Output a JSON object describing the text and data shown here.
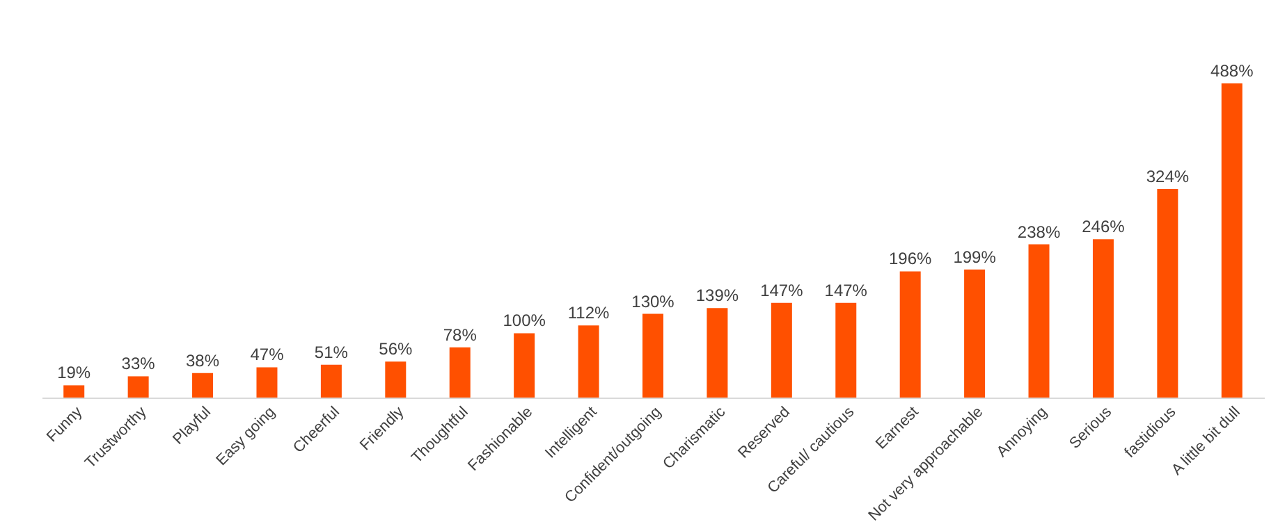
{
  "chart_data": {
    "type": "bar",
    "categories": [
      "Funny",
      "Trustworthy",
      "Playful",
      "Easy going",
      "Cheerful",
      "Friendly",
      "Thoughtful",
      "Fashionable",
      "Intelligent",
      "Confident/outgoing",
      "Charismatic",
      "Reserved",
      "Careful/ cautious",
      "Earnest",
      "Not very approachable",
      "Annoying",
      "Serious",
      "fastidious",
      "A little bit dull"
    ],
    "values": [
      19,
      33,
      38,
      47,
      51,
      56,
      78,
      100,
      112,
      130,
      139,
      147,
      147,
      196,
      199,
      238,
      246,
      324,
      488
    ],
    "value_labels": [
      "19%",
      "33%",
      "38%",
      "47%",
      "51%",
      "56%",
      "78%",
      "100%",
      "112%",
      "130%",
      "139%",
      "147%",
      "147%",
      "196%",
      "199%",
      "238%",
      "246%",
      "324%",
      "488%"
    ],
    "color": "#ff5000",
    "grid": false,
    "tick_labels": "x"
  }
}
